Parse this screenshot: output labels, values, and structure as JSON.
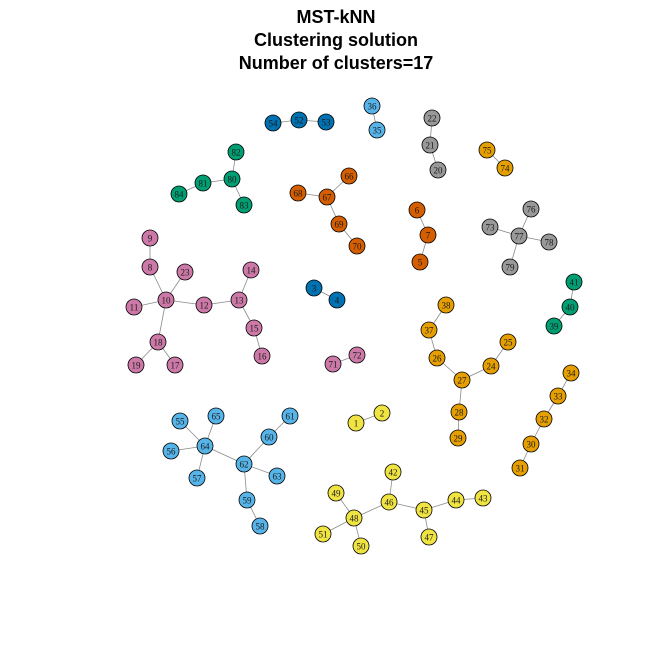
{
  "title": {
    "line1": "MST-kNN",
    "line2": "Clustering solution",
    "line3": "Number of clusters=17"
  },
  "colors": {
    "yellow": "#f0e442",
    "orange": "#e69f00",
    "skyblue": "#56b4e9",
    "pink": "#cc79a7",
    "vermillion": "#d55e00",
    "blue": "#0072b2",
    "green": "#009e73",
    "gray": "#999999"
  },
  "nodes": [
    {
      "id": "1",
      "color": "yellow"
    },
    {
      "id": "2",
      "color": "yellow"
    },
    {
      "id": "3",
      "color": "blue"
    },
    {
      "id": "4",
      "color": "blue"
    },
    {
      "id": "5",
      "color": "vermillion"
    },
    {
      "id": "6",
      "color": "vermillion"
    },
    {
      "id": "7",
      "color": "vermillion"
    },
    {
      "id": "8",
      "color": "pink"
    },
    {
      "id": "9",
      "color": "pink"
    },
    {
      "id": "10",
      "color": "pink"
    },
    {
      "id": "11",
      "color": "pink"
    },
    {
      "id": "12",
      "color": "pink"
    },
    {
      "id": "13",
      "color": "pink"
    },
    {
      "id": "14",
      "color": "pink"
    },
    {
      "id": "15",
      "color": "pink"
    },
    {
      "id": "16",
      "color": "pink"
    },
    {
      "id": "17",
      "color": "pink"
    },
    {
      "id": "18",
      "color": "pink"
    },
    {
      "id": "19",
      "color": "pink"
    },
    {
      "id": "20",
      "color": "gray"
    },
    {
      "id": "21",
      "color": "gray"
    },
    {
      "id": "22",
      "color": "gray"
    },
    {
      "id": "23",
      "color": "pink"
    },
    {
      "id": "24",
      "color": "orange"
    },
    {
      "id": "25",
      "color": "orange"
    },
    {
      "id": "26",
      "color": "orange"
    },
    {
      "id": "27",
      "color": "orange"
    },
    {
      "id": "28",
      "color": "orange"
    },
    {
      "id": "29",
      "color": "orange"
    },
    {
      "id": "30",
      "color": "orange"
    },
    {
      "id": "31",
      "color": "orange"
    },
    {
      "id": "32",
      "color": "orange"
    },
    {
      "id": "33",
      "color": "orange"
    },
    {
      "id": "34",
      "color": "orange"
    },
    {
      "id": "35",
      "color": "skyblue"
    },
    {
      "id": "36",
      "color": "skyblue"
    },
    {
      "id": "37",
      "color": "orange"
    },
    {
      "id": "38",
      "color": "orange"
    },
    {
      "id": "39",
      "color": "green"
    },
    {
      "id": "40",
      "color": "green"
    },
    {
      "id": "41",
      "color": "green"
    },
    {
      "id": "42",
      "color": "yellow"
    },
    {
      "id": "43",
      "color": "yellow"
    },
    {
      "id": "44",
      "color": "yellow"
    },
    {
      "id": "45",
      "color": "yellow"
    },
    {
      "id": "46",
      "color": "yellow"
    },
    {
      "id": "47",
      "color": "yellow"
    },
    {
      "id": "48",
      "color": "yellow"
    },
    {
      "id": "49",
      "color": "yellow"
    },
    {
      "id": "50",
      "color": "yellow"
    },
    {
      "id": "51",
      "color": "yellow"
    },
    {
      "id": "52",
      "color": "blue"
    },
    {
      "id": "53",
      "color": "blue"
    },
    {
      "id": "54",
      "color": "blue"
    },
    {
      "id": "55",
      "color": "skyblue"
    },
    {
      "id": "56",
      "color": "skyblue"
    },
    {
      "id": "57",
      "color": "skyblue"
    },
    {
      "id": "58",
      "color": "skyblue"
    },
    {
      "id": "59",
      "color": "skyblue"
    },
    {
      "id": "60",
      "color": "skyblue"
    },
    {
      "id": "61",
      "color": "skyblue"
    },
    {
      "id": "62",
      "color": "skyblue"
    },
    {
      "id": "63",
      "color": "skyblue"
    },
    {
      "id": "64",
      "color": "skyblue"
    },
    {
      "id": "65",
      "color": "skyblue"
    },
    {
      "id": "66",
      "color": "vermillion"
    },
    {
      "id": "67",
      "color": "vermillion"
    },
    {
      "id": "68",
      "color": "vermillion"
    },
    {
      "id": "69",
      "color": "vermillion"
    },
    {
      "id": "70",
      "color": "vermillion"
    },
    {
      "id": "71",
      "color": "pink"
    },
    {
      "id": "72",
      "color": "pink"
    },
    {
      "id": "73",
      "color": "gray"
    },
    {
      "id": "74",
      "color": "orange"
    },
    {
      "id": "75",
      "color": "orange"
    },
    {
      "id": "76",
      "color": "gray"
    },
    {
      "id": "77",
      "color": "gray"
    },
    {
      "id": "78",
      "color": "gray"
    },
    {
      "id": "79",
      "color": "gray"
    },
    {
      "id": "80",
      "color": "green"
    },
    {
      "id": "81",
      "color": "green"
    },
    {
      "id": "82",
      "color": "green"
    },
    {
      "id": "83",
      "color": "green"
    },
    {
      "id": "84",
      "color": "green"
    }
  ],
  "edges": [
    [
      "1",
      "2"
    ],
    [
      "3",
      "4"
    ],
    [
      "5",
      "7"
    ],
    [
      "6",
      "7"
    ],
    [
      "9",
      "8"
    ],
    [
      "8",
      "10"
    ],
    [
      "23",
      "10"
    ],
    [
      "11",
      "10"
    ],
    [
      "10",
      "12"
    ],
    [
      "10",
      "18"
    ],
    [
      "12",
      "13"
    ],
    [
      "13",
      "14"
    ],
    [
      "13",
      "15"
    ],
    [
      "15",
      "16"
    ],
    [
      "18",
      "19"
    ],
    [
      "18",
      "17"
    ],
    [
      "71",
      "72"
    ],
    [
      "22",
      "21"
    ],
    [
      "21",
      "20"
    ],
    [
      "75",
      "74"
    ],
    [
      "76",
      "77"
    ],
    [
      "73",
      "77"
    ],
    [
      "78",
      "77"
    ],
    [
      "79",
      "77"
    ],
    [
      "36",
      "35"
    ],
    [
      "54",
      "52"
    ],
    [
      "52",
      "53"
    ],
    [
      "82",
      "80"
    ],
    [
      "81",
      "80"
    ],
    [
      "84",
      "81"
    ],
    [
      "80",
      "83"
    ],
    [
      "68",
      "67"
    ],
    [
      "66",
      "67"
    ],
    [
      "67",
      "69"
    ],
    [
      "69",
      "70"
    ],
    [
      "41",
      "40"
    ],
    [
      "40",
      "39"
    ],
    [
      "38",
      "37"
    ],
    [
      "37",
      "26"
    ],
    [
      "26",
      "27"
    ],
    [
      "24",
      "27"
    ],
    [
      "25",
      "24"
    ],
    [
      "27",
      "28"
    ],
    [
      "28",
      "29"
    ],
    [
      "34",
      "33"
    ],
    [
      "33",
      "32"
    ],
    [
      "32",
      "30"
    ],
    [
      "30",
      "31"
    ],
    [
      "55",
      "64"
    ],
    [
      "65",
      "64"
    ],
    [
      "56",
      "64"
    ],
    [
      "64",
      "57"
    ],
    [
      "64",
      "62"
    ],
    [
      "60",
      "62"
    ],
    [
      "61",
      "60"
    ],
    [
      "62",
      "63"
    ],
    [
      "62",
      "59"
    ],
    [
      "59",
      "58"
    ],
    [
      "42",
      "46"
    ],
    [
      "49",
      "48"
    ],
    [
      "48",
      "46"
    ],
    [
      "46",
      "45"
    ],
    [
      "45",
      "44"
    ],
    [
      "44",
      "43"
    ],
    [
      "45",
      "47"
    ],
    [
      "48",
      "51"
    ],
    [
      "48",
      "50"
    ]
  ]
}
